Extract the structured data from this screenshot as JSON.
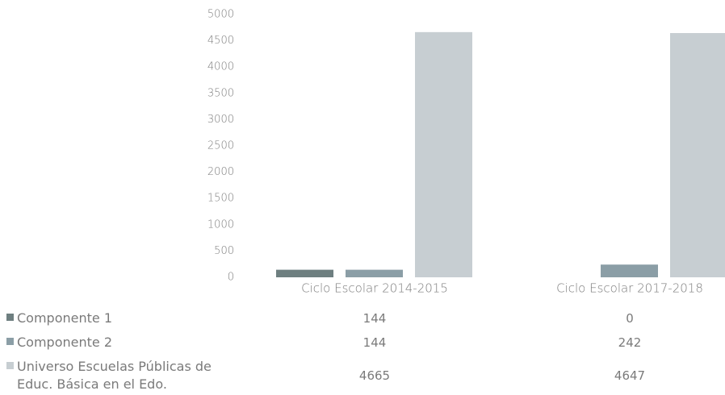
{
  "chart_data": {
    "type": "bar",
    "categories": [
      "Ciclo Escolar 2014-2015",
      "Ciclo Escolar 2017-2018"
    ],
    "series": [
      {
        "name": "Componente 1",
        "color": "#6e7f80",
        "values": [
          144,
          0
        ]
      },
      {
        "name": "Componente 2",
        "color": "#8b9ea6",
        "values": [
          144,
          242
        ]
      },
      {
        "name": "Universo Escuelas Públicas de Educ. Básica en el Edo.",
        "color": "#c7ced2",
        "values": [
          4665,
          4647
        ]
      }
    ],
    "ylim": [
      0,
      5000
    ],
    "yticks": [
      0,
      500,
      1000,
      1500,
      2000,
      2500,
      3000,
      3500,
      4000,
      4500,
      5000
    ],
    "grid": false
  }
}
